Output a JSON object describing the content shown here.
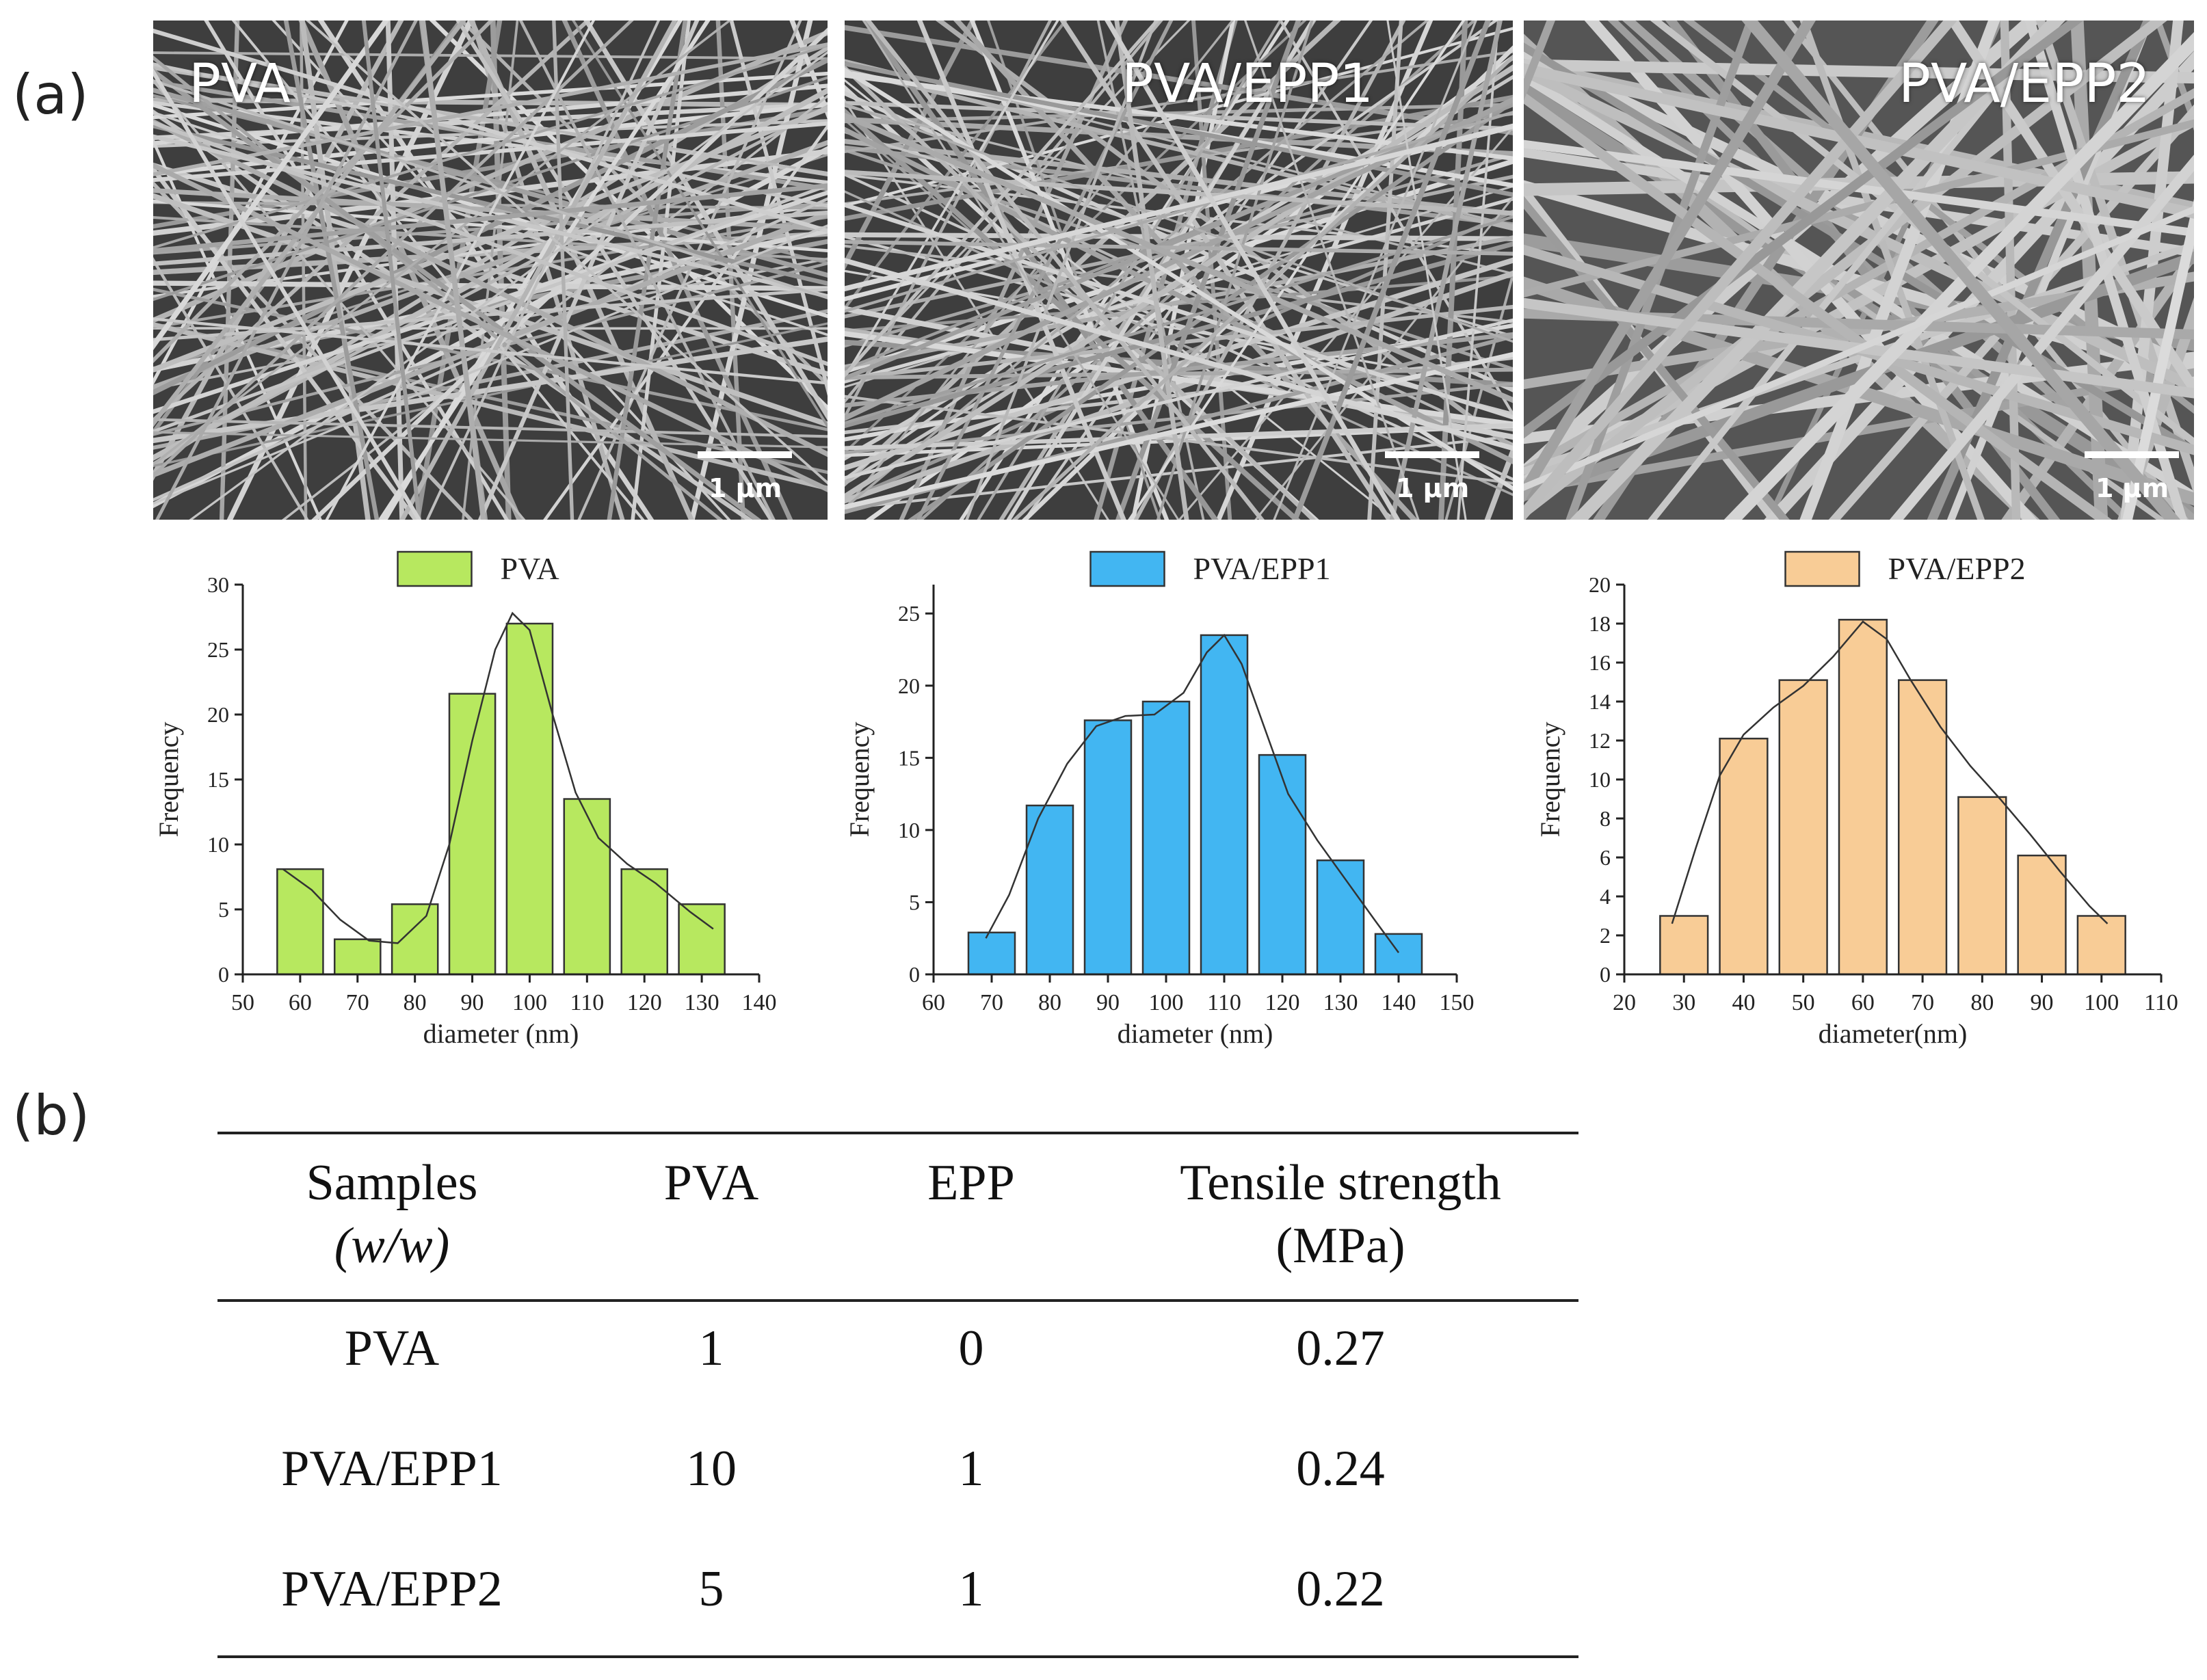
{
  "panel_labels": {
    "a": "(a)",
    "b": "(b)"
  },
  "sem_images": [
    {
      "label": "PVA",
      "scale": "1 µm"
    },
    {
      "label": "PVA/EPP1",
      "scale": "1 µm"
    },
    {
      "label": "PVA/EPP2",
      "scale": "1 µm"
    }
  ],
  "chart_data": [
    {
      "type": "bar",
      "legend": "PVA",
      "color": "#b7e85f",
      "xlabel": "diameter (nm)",
      "ylabel": "Frequency",
      "xlim": [
        50,
        140
      ],
      "ylim": [
        0,
        30
      ],
      "xticks": [
        50,
        60,
        70,
        80,
        90,
        100,
        110,
        120,
        130,
        140
      ],
      "yticks": [
        0,
        5,
        10,
        15,
        20,
        25,
        30
      ],
      "bin_width": 10,
      "centers": [
        60,
        70,
        80,
        90,
        100,
        110,
        120,
        130
      ],
      "values": [
        8.1,
        2.7,
        5.4,
        21.6,
        27.0,
        13.5,
        8.1,
        5.4
      ],
      "curve": [
        [
          57,
          8.1
        ],
        [
          62,
          6.5
        ],
        [
          67,
          4.2
        ],
        [
          72,
          2.6
        ],
        [
          77,
          2.4
        ],
        [
          82,
          4.5
        ],
        [
          86,
          10
        ],
        [
          90,
          18
        ],
        [
          94,
          25
        ],
        [
          97,
          27.8
        ],
        [
          100,
          26.5
        ],
        [
          104,
          20
        ],
        [
          108,
          14
        ],
        [
          112,
          10.5
        ],
        [
          117,
          8.5
        ],
        [
          122,
          7
        ],
        [
          128,
          4.8
        ],
        [
          132,
          3.5
        ]
      ]
    },
    {
      "type": "bar",
      "legend": "PVA/EPP1",
      "color": "#42b6f2",
      "xlabel": "diameter (nm)",
      "ylabel": "Frequency",
      "xlim": [
        60,
        150
      ],
      "ylim": [
        0,
        27
      ],
      "xticks": [
        60,
        70,
        80,
        90,
        100,
        110,
        120,
        130,
        140,
        150
      ],
      "yticks": [
        0,
        5,
        10,
        15,
        20,
        25
      ],
      "bin_width": 10,
      "centers": [
        70,
        80,
        90,
        100,
        110,
        120,
        130,
        140
      ],
      "values": [
        2.9,
        11.7,
        17.6,
        18.9,
        23.5,
        15.2,
        7.9,
        2.8
      ],
      "curve": [
        [
          69,
          2.5
        ],
        [
          73,
          5.5
        ],
        [
          78,
          10.8
        ],
        [
          83,
          14.6
        ],
        [
          88,
          17.2
        ],
        [
          93,
          17.9
        ],
        [
          98,
          18
        ],
        [
          103,
          19.5
        ],
        [
          107,
          22.3
        ],
        [
          110,
          23.5
        ],
        [
          113,
          21.5
        ],
        [
          117,
          17
        ],
        [
          121,
          12.5
        ],
        [
          126,
          9.3
        ],
        [
          131,
          6.5
        ],
        [
          136,
          3.7
        ],
        [
          140,
          1.5
        ]
      ]
    },
    {
      "type": "bar",
      "legend": "PVA/EPP2",
      "color": "#f8cc96",
      "xlabel": "diameter(nm)",
      "ylabel": "Frequency",
      "xlim": [
        20,
        110
      ],
      "ylim": [
        0,
        20
      ],
      "xticks": [
        20,
        30,
        40,
        50,
        60,
        70,
        80,
        90,
        100,
        110
      ],
      "yticks": [
        0,
        2,
        4,
        6,
        8,
        10,
        12,
        14,
        16,
        18,
        20
      ],
      "bin_width": 10,
      "centers": [
        30,
        40,
        50,
        60,
        70,
        80,
        90,
        100
      ],
      "values": [
        3,
        12.1,
        15.1,
        18.2,
        15.1,
        9.1,
        6.1,
        3
      ],
      "curve": [
        [
          28,
          2.6
        ],
        [
          32,
          6.5
        ],
        [
          36,
          10.2
        ],
        [
          40,
          12.3
        ],
        [
          45,
          13.7
        ],
        [
          50,
          14.8
        ],
        [
          55,
          16.3
        ],
        [
          60,
          18.1
        ],
        [
          64,
          17.2
        ],
        [
          68,
          15.1
        ],
        [
          73,
          12.7
        ],
        [
          78,
          10.7
        ],
        [
          83,
          9
        ],
        [
          88,
          7.2
        ],
        [
          93,
          5.3
        ],
        [
          98,
          3.5
        ],
        [
          101,
          2.6
        ]
      ]
    }
  ],
  "table": {
    "headers": [
      {
        "line1": "Samples",
        "line2": "(w/w)"
      },
      {
        "line1": "PVA",
        "line2": ""
      },
      {
        "line1": "EPP",
        "line2": ""
      },
      {
        "line1": "Tensile strength",
        "line2": "(MPa)"
      }
    ],
    "rows": [
      [
        "PVA",
        "1",
        "0",
        "0.27"
      ],
      [
        "PVA/EPP1",
        "10",
        "1",
        "0.24"
      ],
      [
        "PVA/EPP2",
        "5",
        "1",
        "0.22"
      ]
    ]
  }
}
